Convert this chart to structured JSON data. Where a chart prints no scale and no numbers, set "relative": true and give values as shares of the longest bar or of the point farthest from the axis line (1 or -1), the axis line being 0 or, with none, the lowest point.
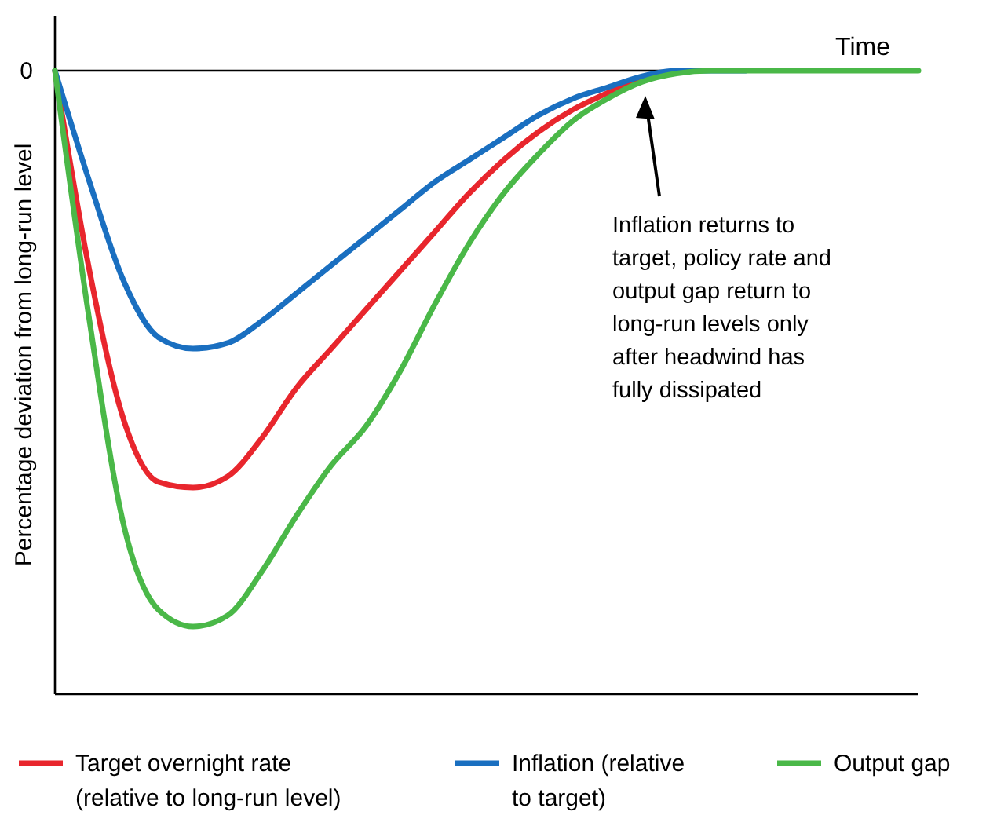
{
  "chart_data": {
    "type": "line",
    "relative": true,
    "xlabel": "Time",
    "ylabel": "Percentage deviation from long-run level",
    "categories": [
      null,
      null,
      null,
      null,
      null,
      null,
      null,
      null,
      null,
      null,
      null,
      null,
      null,
      null,
      null,
      null,
      null,
      null,
      null,
      null,
      null,
      null,
      null,
      null,
      null,
      null
    ],
    "series": [
      {
        "name": "Target overnight rate (relative to long-run level)",
        "color": "#e8262d",
        "values": [
          0,
          -0.36,
          -0.63,
          -0.74,
          -0.75,
          -0.73,
          -0.66,
          -0.57,
          -0.5,
          -0.43,
          -0.36,
          -0.29,
          -0.22,
          -0.16,
          -0.11,
          -0.07,
          -0.04,
          -0.015,
          null,
          null,
          null,
          null,
          null,
          null,
          null,
          null
        ]
      },
      {
        "name": "Inflation (relative to target)",
        "color": "#1a6fc0",
        "values": [
          0,
          -0.2,
          -0.38,
          -0.48,
          -0.5,
          -0.49,
          -0.45,
          -0.4,
          -0.35,
          -0.3,
          -0.25,
          -0.2,
          -0.16,
          -0.12,
          -0.08,
          -0.05,
          -0.03,
          -0.01,
          0,
          0,
          0,
          null,
          null,
          null,
          null,
          null
        ]
      },
      {
        "name": "Output gap",
        "color": "#4ab848",
        "values": [
          0,
          -0.45,
          -0.82,
          -0.97,
          -1,
          -0.98,
          -0.9,
          -0.8,
          -0.71,
          -0.64,
          -0.54,
          -0.42,
          -0.31,
          -0.22,
          -0.15,
          -0.09,
          -0.05,
          -0.02,
          -0.005,
          0,
          0,
          0,
          0,
          0,
          0,
          0
        ]
      }
    ],
    "annotations": [
      "0",
      "Inflation returns to target, policy rate and output gap return to long-run levels only after headwind has fully dissipated"
    ],
    "legend": "bottom",
    "marker": "none",
    "line_style": "solid"
  }
}
